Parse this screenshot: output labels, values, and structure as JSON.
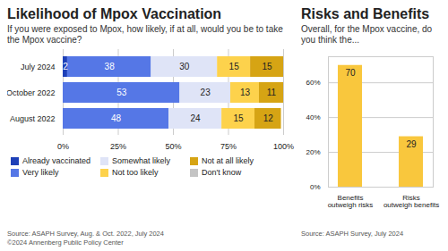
{
  "chart_data": [
    {
      "type": "bar",
      "title": "Likelihood of Mpox Vaccination",
      "subtitle": "If you were exposed to Mpox, how likely, if at all, would you be to take the Mpox vaccine?",
      "orientation": "horizontal",
      "stacked": true,
      "data_labels": true,
      "grid": true,
      "legend": "bottom",
      "categories": [
        "July 2024",
        "October 2022",
        "August 2022"
      ],
      "series": [
        {
          "name": "Already vaccinated",
          "color": "#1e40b8",
          "values": [
            2,
            null,
            null
          ]
        },
        {
          "name": "Very likely",
          "color": "#5577e6",
          "values": [
            38,
            53,
            48
          ]
        },
        {
          "name": "Somewhat likely",
          "color": "#dfe4f7",
          "values": [
            30,
            23,
            24
          ]
        },
        {
          "name": "Not too likely",
          "color": "#fdd24c",
          "values": [
            15,
            13,
            15
          ]
        },
        {
          "name": "Not at all likely",
          "color": "#d6a414",
          "values": [
            15,
            11,
            12
          ]
        },
        {
          "name": "Don't know",
          "color": "#c4c4c4",
          "values": [
            null,
            null,
            null
          ]
        }
      ],
      "xlim": [
        0,
        100
      ],
      "xticks": [
        {
          "value": 0,
          "label": "0%"
        },
        {
          "value": 25,
          "label": "25%"
        },
        {
          "value": 50,
          "label": "50%"
        },
        {
          "value": 75,
          "label": "75%"
        },
        {
          "value": 100,
          "label": "100%"
        }
      ],
      "source": "Source: ASAPH Survey, Aug. & Oct. 2022, July 2024",
      "credit": "©2024 Annenberg Public Policy Center"
    },
    {
      "type": "bar",
      "title": "Risks and Benefits",
      "subtitle": "Overall, for the Mpox vaccine, do you think the...",
      "data_labels": true,
      "grid": true,
      "categories": [
        "Benefits outweigh risks",
        "Risks outweigh benefits"
      ],
      "values": [
        70,
        29
      ],
      "color": "#f9c73d",
      "ylim": [
        0,
        75
      ],
      "yticks": [
        {
          "value": 0,
          "label": "0%"
        },
        {
          "value": 20,
          "label": "20%"
        },
        {
          "value": 40,
          "label": "40%"
        },
        {
          "value": 60,
          "label": "60%"
        }
      ],
      "source": "Source: ASAPH Survey, July 2024"
    }
  ]
}
